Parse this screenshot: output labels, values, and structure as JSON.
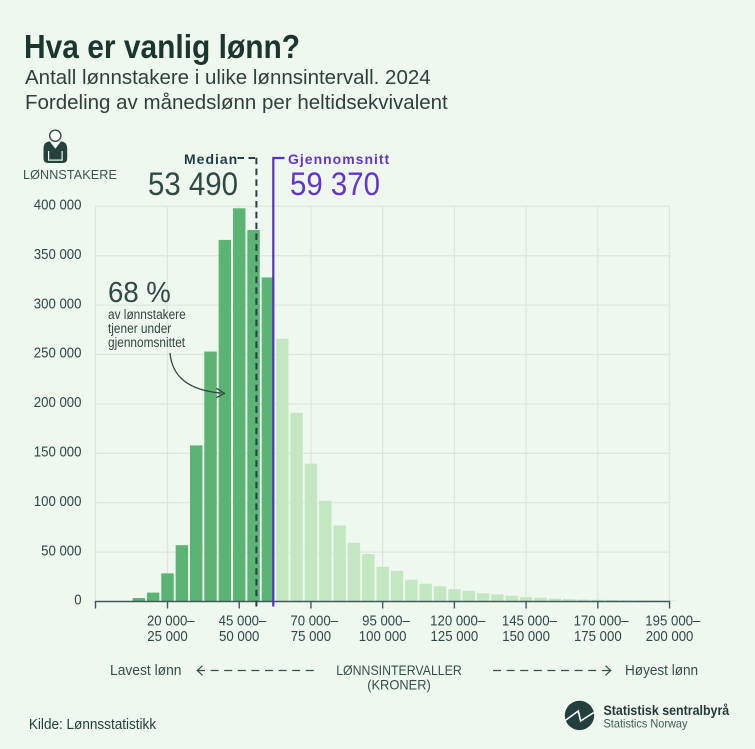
{
  "header": {
    "title": "Hva er vanlig lønn?",
    "subtitle_line1": "Antall lønnstakere i ulike lønnsintervall. 2024",
    "subtitle_line2": "Fordeling av månedslønn per heltidsekvivalent"
  },
  "unit_label": "LØNNSTAKERE",
  "median": {
    "label": "Median",
    "value": "53 490"
  },
  "mean": {
    "label": "Gjennomsnitt",
    "value": "59 370"
  },
  "annotation": {
    "headline": "68 %",
    "line1": "av lønnstakere",
    "line2": "tjener under",
    "line3": "gjennomsnittet"
  },
  "x_axis": {
    "low_label": "Lavest lønn",
    "high_label": "Høyest lønn",
    "title_line1": "LØNNSINTERVALLER",
    "title_line2": "(KRONER)"
  },
  "footer": {
    "source": "Kilde: Lønnsstatistikk",
    "logo_name": "Statistisk sentralbyrå",
    "logo_subname": "Statistics Norway"
  },
  "colors": {
    "background": "#eff8ef",
    "bar_below_mean": "#5bb474",
    "bar_above_mean": "#c3e8c1",
    "median_line": "#2b3d4a",
    "mean_line": "#5532c4",
    "accent_purple": "#6434cd",
    "dark_teal": "#1a362f",
    "gridline": "#dee7de",
    "axis": "#44565c"
  },
  "chart_data": {
    "type": "bar",
    "title": "Antall lønnstakere i ulike lønnsintervall. 2024",
    "xlabel": "LØNNSINTERVALLER (KRONER)",
    "ylabel": "Antall lønnstakere",
    "ylim": [
      0,
      400000
    ],
    "x_interval_width_kr": 5000,
    "x_first_interval_start_kr": 10000,
    "categories": [
      "10 000–15 000",
      "15 000–20 000",
      "20 000–25 000",
      "25 000–30 000",
      "30 000–35 000",
      "35 000–40 000",
      "40 000–45 000",
      "45 000–50 000",
      "50 000–55 000",
      "55 000–60 000",
      "60 000–65 000",
      "65 000–70 000",
      "70 000–75 000",
      "75 000–80 000",
      "80 000–85 000",
      "85 000–90 000",
      "90 000–95 000",
      "95 000–100 000",
      "100 000–105 000",
      "105 000–110 000",
      "110 000–115 000",
      "115 000–120 000",
      "120 000–125 000",
      "125 000–130 000",
      "130 000–135 000",
      "135 000–140 000",
      "140 000–145 000",
      "145 000–150 000",
      "150 000–155 000",
      "155 000–160 000",
      "160 000–165 000",
      "165 000–170 000",
      "170 000–175 000",
      "175 000–180 000",
      "180 000–185 000",
      "185 000–190 000",
      "190 000–195 000",
      "195 000–200 000"
    ],
    "values": [
      3500,
      9000,
      28500,
      57000,
      158000,
      253000,
      366000,
      398000,
      376000,
      328000,
      266000,
      191000,
      139500,
      102000,
      77000,
      59500,
      48000,
      35000,
      31000,
      22000,
      18000,
      15500,
      12500,
      10800,
      8300,
      7100,
      5900,
      4500,
      3800,
      2900,
      2400,
      2000,
      1700,
      1500,
      1300,
      1200,
      1100,
      1000
    ],
    "bars_below_mean_count": 10,
    "median_value_kr": 53490,
    "mean_value_kr": 59370,
    "y_tick_labels": [
      "0",
      "50 000",
      "100 000",
      "150 000",
      "200 000",
      "250 000",
      "300 000",
      "350 000",
      "400 000"
    ],
    "x_tick_labels": [
      [
        "20 000–",
        "25 000"
      ],
      [
        "45 000–",
        "50 000"
      ],
      [
        "70 000–",
        "75 000"
      ],
      [
        "95 000–",
        "100 000"
      ],
      [
        "120 000–",
        "125 000"
      ],
      [
        "145 000–",
        "150 000"
      ],
      [
        "170 000–",
        "175 000"
      ],
      [
        "195 000–",
        "200 000"
      ]
    ],
    "grid": true,
    "legend": false
  }
}
